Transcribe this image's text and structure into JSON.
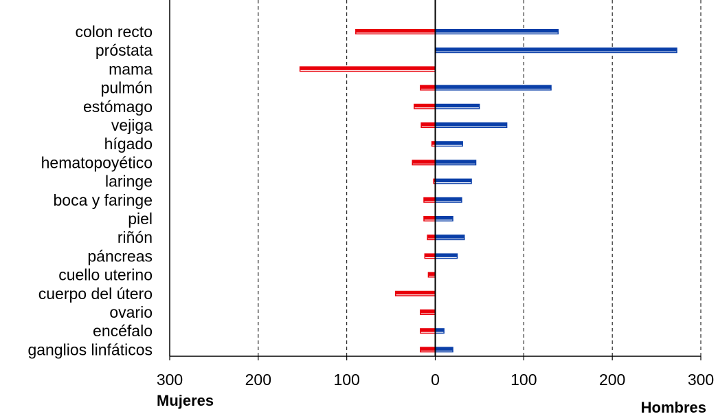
{
  "chart_data": {
    "type": "bar",
    "orientation": "horizontal-diverging",
    "categories": [
      "colon recto",
      "próstata",
      "mama",
      "pulmón",
      "estómago",
      "vejiga",
      "hígado",
      "hematopoyético",
      "laringe",
      "boca y faringe",
      "piel",
      "riñón",
      "páncreas",
      "cuello uterino",
      "cuerpo del útero",
      "ovario",
      "encéfalo",
      "ganglios linfáticos"
    ],
    "series": [
      {
        "name": "Mujeres",
        "color": "#e8000b",
        "values": [
          90,
          0,
          153,
          17,
          24,
          16,
          4,
          26,
          2,
          13,
          13,
          9,
          12,
          8,
          45,
          17,
          17,
          17
        ]
      },
      {
        "name": "Hombres",
        "color": "#0a3fa8",
        "values": [
          139,
          273,
          0,
          131,
          50,
          81,
          31,
          46,
          41,
          30,
          20,
          33,
          25,
          0,
          0,
          0,
          10,
          20
        ]
      }
    ],
    "xlim": [
      -300,
      300
    ],
    "tick_labels": [
      "300",
      "200",
      "100",
      "0",
      "100",
      "200",
      "300"
    ],
    "left_label": "Mujeres",
    "right_label": "Hombres",
    "grid": "vertical-dashed"
  }
}
